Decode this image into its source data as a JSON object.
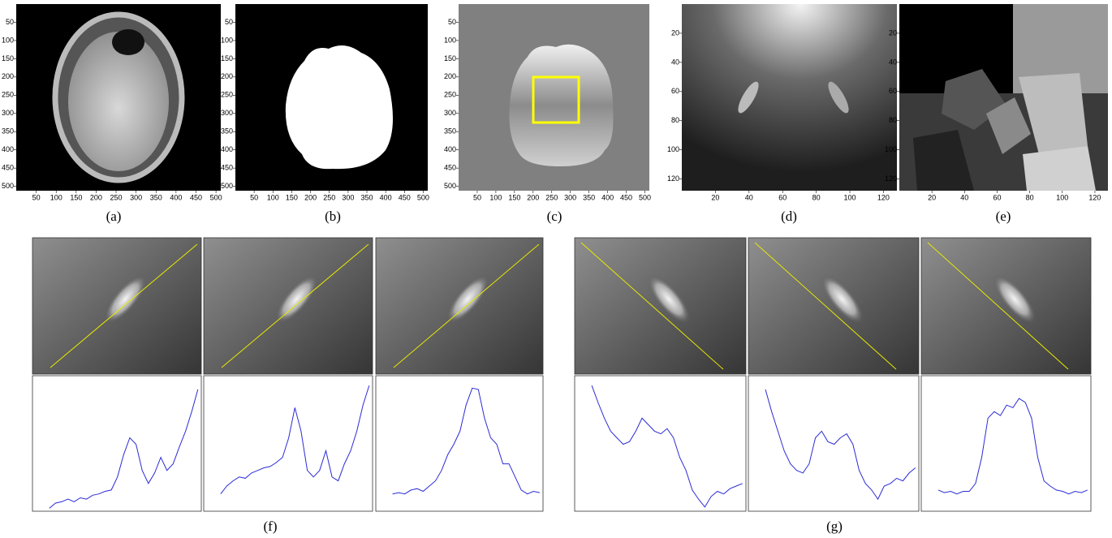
{
  "panels": [
    {
      "label": "(a)",
      "xlim": [
        0,
        512
      ],
      "ylim": [
        0,
        512
      ],
      "yreverse": true,
      "xticks": [
        50,
        100,
        150,
        200,
        250,
        300,
        350,
        400,
        450,
        500
      ],
      "yticks": [
        50,
        100,
        150,
        200,
        250,
        300,
        350,
        400,
        450,
        500
      ]
    },
    {
      "label": "(b)",
      "xlim": [
        0,
        512
      ],
      "ylim": [
        0,
        512
      ],
      "yreverse": true,
      "xticks": [
        50,
        100,
        150,
        200,
        250,
        300,
        350,
        400,
        450,
        500
      ],
      "yticks": [
        50,
        100,
        150,
        200,
        250,
        300,
        350,
        400,
        450,
        500
      ]
    },
    {
      "label": "(c)",
      "xlim": [
        0,
        512
      ],
      "ylim": [
        0,
        512
      ],
      "yreverse": true,
      "xticks": [
        50,
        100,
        150,
        200,
        250,
        300,
        350,
        400,
        450,
        500
      ],
      "yticks": [
        50,
        100,
        150,
        200,
        250,
        300,
        350,
        400,
        450,
        500
      ]
    },
    {
      "label": "(d)",
      "xlim": [
        0,
        128
      ],
      "ylim": [
        0,
        128
      ],
      "yreverse": true,
      "xticks": [
        20,
        40,
        60,
        80,
        100,
        120
      ],
      "yticks": [
        20,
        40,
        60,
        80,
        100,
        120
      ]
    },
    {
      "label": "(e)",
      "xlim": [
        0,
        128
      ],
      "ylim": [
        0,
        128
      ],
      "yreverse": true,
      "xticks": [
        20,
        40,
        60,
        80,
        100,
        120
      ],
      "yticks": [
        20,
        40,
        60,
        80,
        100,
        120
      ]
    }
  ],
  "profile_groups": [
    {
      "label": "(f)",
      "ylim": [
        0,
        100
      ],
      "color": "#2b2bd6",
      "profiles": [
        {
          "values": [
            1,
            5,
            6,
            8,
            6,
            9,
            8,
            11,
            12,
            14,
            15,
            25,
            42,
            55,
            50,
            30,
            20,
            28,
            40,
            30,
            35,
            48,
            60,
            75,
            92
          ]
        },
        {
          "values": [
            12,
            18,
            22,
            25,
            24,
            28,
            30,
            32,
            33,
            36,
            40,
            55,
            78,
            60,
            30,
            25,
            30,
            45,
            25,
            22,
            35,
            45,
            60,
            80,
            95
          ]
        },
        {
          "values": [
            12,
            13,
            12,
            15,
            16,
            14,
            18,
            22,
            30,
            42,
            50,
            60,
            80,
            93,
            92,
            70,
            55,
            50,
            35,
            35,
            25,
            15,
            12,
            14,
            13
          ]
        }
      ]
    },
    {
      "label": "(g)",
      "ylim": [
        0,
        100
      ],
      "color": "#2b2bd6",
      "profiles": [
        {
          "values": [
            95,
            82,
            70,
            60,
            55,
            50,
            52,
            60,
            70,
            65,
            60,
            58,
            62,
            55,
            40,
            30,
            15,
            8,
            2,
            10,
            14,
            12,
            16,
            18,
            20
          ]
        },
        {
          "values": [
            92,
            75,
            60,
            45,
            35,
            30,
            28,
            35,
            55,
            60,
            52,
            50,
            55,
            58,
            50,
            30,
            20,
            15,
            8,
            18,
            20,
            24,
            22,
            28,
            32
          ]
        },
        {
          "values": [
            15,
            13,
            14,
            12,
            14,
            14,
            20,
            40,
            70,
            75,
            72,
            80,
            78,
            85,
            82,
            70,
            40,
            22,
            18,
            15,
            14,
            12,
            14,
            13,
            15
          ]
        }
      ]
    }
  ]
}
